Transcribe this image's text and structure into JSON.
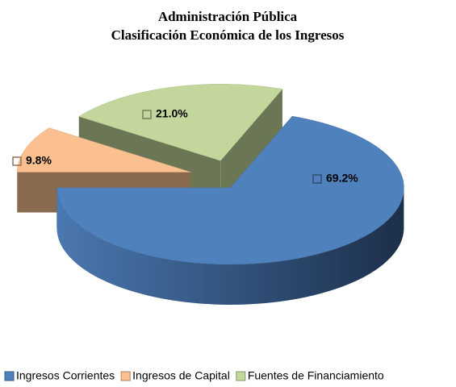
{
  "chart_data": {
    "type": "pie3d",
    "title": [
      "Administración Pública",
      "Clasificación Económica de los Ingresos"
    ],
    "categories": [
      "Ingresos Corrientes",
      "Ingresos de Capital",
      "Fuentes de Financiamiento"
    ],
    "values": [
      69.2,
      9.8,
      21.0
    ],
    "value_labels": [
      "69.2%",
      "9.8%",
      "21.0%"
    ],
    "colors": [
      "#4f81bd",
      "#fac090",
      "#c3d69b"
    ],
    "legend": "bottom"
  }
}
